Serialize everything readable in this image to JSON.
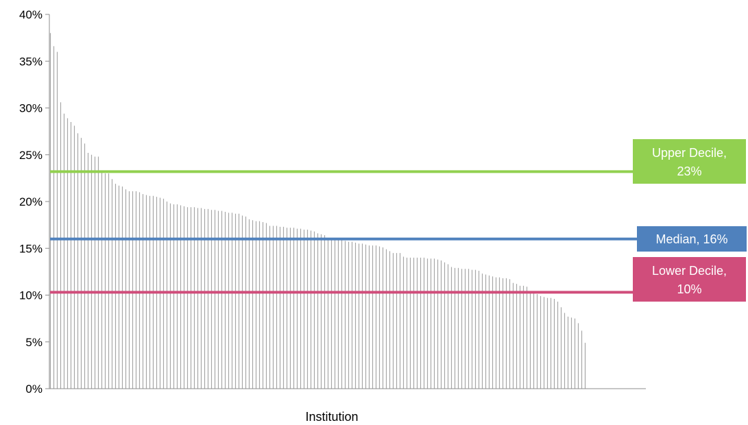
{
  "chart_data": {
    "type": "bar",
    "title": "",
    "xlabel": "Institution",
    "ylabel": "",
    "ylim": [
      0,
      0.4
    ],
    "y_tick_values": [
      0,
      0.05,
      0.1,
      0.15,
      0.2,
      0.25,
      0.3,
      0.35,
      0.4
    ],
    "y_tick_labels": [
      "0%",
      "5%",
      "10%",
      "15%",
      "20%",
      "25%",
      "30%",
      "35%",
      "40%"
    ],
    "grid": false,
    "bar_color": "#a6a6a6",
    "values": [
      0.38,
      0.366,
      0.36,
      0.306,
      0.294,
      0.289,
      0.285,
      0.281,
      0.273,
      0.268,
      0.262,
      0.252,
      0.25,
      0.248,
      0.248,
      0.232,
      0.23,
      0.23,
      0.224,
      0.219,
      0.217,
      0.216,
      0.213,
      0.211,
      0.211,
      0.211,
      0.21,
      0.208,
      0.207,
      0.206,
      0.206,
      0.205,
      0.204,
      0.203,
      0.2,
      0.198,
      0.197,
      0.197,
      0.196,
      0.195,
      0.194,
      0.194,
      0.194,
      0.193,
      0.193,
      0.192,
      0.192,
      0.191,
      0.191,
      0.19,
      0.19,
      0.189,
      0.188,
      0.188,
      0.187,
      0.187,
      0.185,
      0.184,
      0.181,
      0.18,
      0.179,
      0.179,
      0.178,
      0.177,
      0.174,
      0.174,
      0.174,
      0.173,
      0.173,
      0.172,
      0.172,
      0.172,
      0.171,
      0.171,
      0.17,
      0.17,
      0.169,
      0.168,
      0.166,
      0.165,
      0.164,
      0.161,
      0.16,
      0.16,
      0.159,
      0.159,
      0.158,
      0.157,
      0.157,
      0.156,
      0.155,
      0.155,
      0.154,
      0.153,
      0.153,
      0.153,
      0.152,
      0.151,
      0.149,
      0.147,
      0.145,
      0.145,
      0.145,
      0.141,
      0.14,
      0.14,
      0.14,
      0.14,
      0.14,
      0.14,
      0.139,
      0.139,
      0.139,
      0.138,
      0.137,
      0.135,
      0.133,
      0.13,
      0.129,
      0.129,
      0.128,
      0.128,
      0.128,
      0.127,
      0.127,
      0.126,
      0.123,
      0.122,
      0.121,
      0.12,
      0.119,
      0.119,
      0.118,
      0.118,
      0.117,
      0.113,
      0.112,
      0.11,
      0.11,
      0.109,
      0.104,
      0.103,
      0.101,
      0.099,
      0.098,
      0.097,
      0.097,
      0.096,
      0.093,
      0.087,
      0.081,
      0.077,
      0.076,
      0.075,
      0.07,
      0.062,
      0.049
    ],
    "reference_lines": [
      {
        "value": 0.232,
        "label_line1": "Upper Decile,",
        "label_line2": "23%",
        "color": "#92d050"
      },
      {
        "value": 0.16,
        "label_line1": "Median, 16%",
        "label_line2": "",
        "color": "#4f81bd"
      },
      {
        "value": 0.103,
        "label_line1": "Lower Decile,",
        "label_line2": "10%",
        "color": "#d04d7b"
      }
    ]
  }
}
